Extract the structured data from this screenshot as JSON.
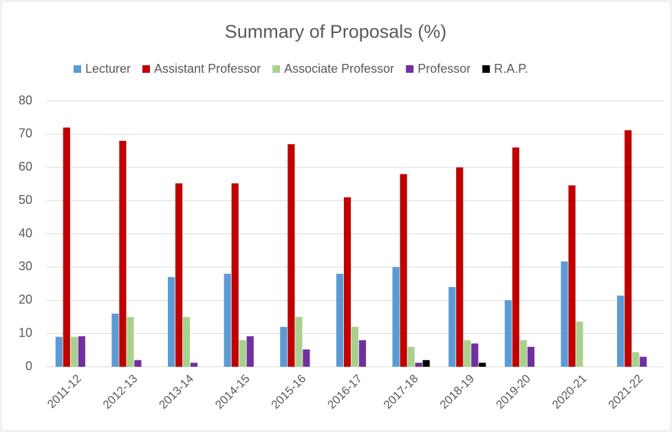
{
  "chart_data": {
    "type": "bar",
    "title": "Summary of Proposals (%)",
    "categories": [
      "2011-12",
      "2012-13",
      "2013-14",
      "2014-15",
      "2015-16",
      "2016-17",
      "2017-18",
      "2018-19",
      "2019-20",
      "2020-21",
      "2021-22"
    ],
    "series": [
      {
        "name": "Lecturer",
        "color": "#5b9bd5",
        "values": [
          9,
          16,
          27,
          28,
          12,
          28,
          30,
          24,
          20,
          31.7,
          21.4
        ]
      },
      {
        "name": "Assistant Professor",
        "color": "#c00000",
        "values": [
          72,
          68,
          55.2,
          55.2,
          67,
          51,
          58,
          60,
          66,
          54.6,
          71.2
        ]
      },
      {
        "name": "Associate Professor",
        "color": "#a9d18e",
        "values": [
          9,
          15,
          15,
          8,
          15,
          12,
          6,
          8,
          8,
          13.6,
          4.4
        ]
      },
      {
        "name": "Professor",
        "color": "#7030a0",
        "values": [
          9.2,
          2,
          1.2,
          9.2,
          5.2,
          8,
          1.2,
          7,
          6,
          0,
          3
        ]
      },
      {
        "name": "R.A.P.",
        "color": "#000000",
        "values": [
          0,
          0,
          0,
          0,
          0,
          0,
          2,
          1.2,
          0,
          0,
          0
        ]
      }
    ],
    "ylim": [
      0,
      80
    ],
    "yticks": [
      0,
      10,
      20,
      30,
      40,
      50,
      60,
      70,
      80
    ],
    "grid": true,
    "legend": "top"
  }
}
